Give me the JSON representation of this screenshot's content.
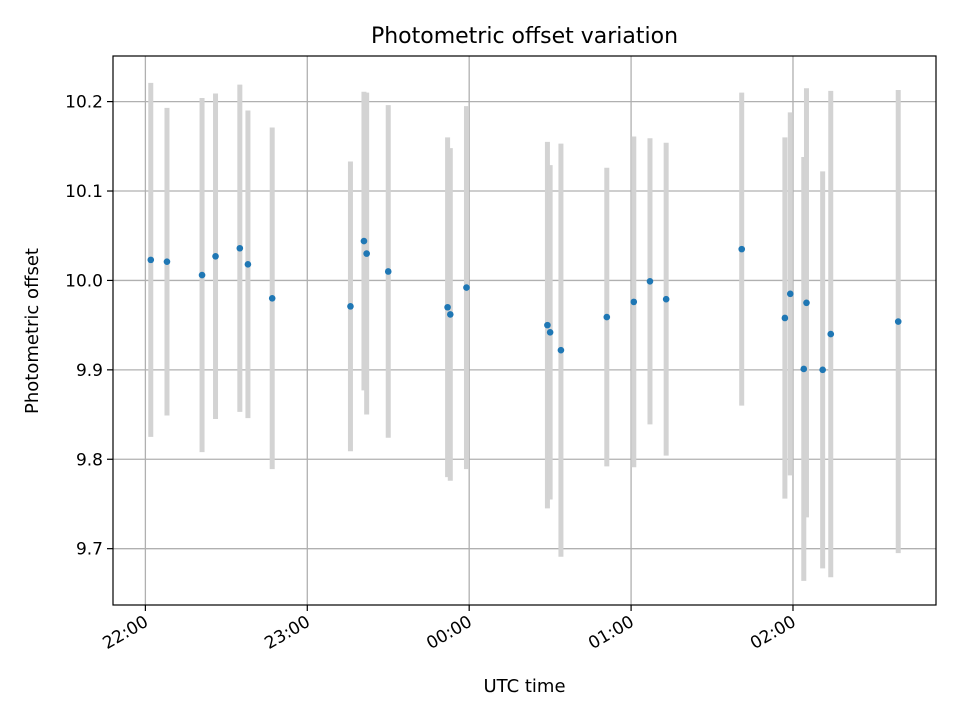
{
  "chart_data": {
    "type": "scatter",
    "title": "Photometric offset variation",
    "xlabel": "UTC time",
    "ylabel": "Photometric offset",
    "x_is_time": true,
    "xlim": [
      "21:48",
      "02:53"
    ],
    "ylim": [
      9.637,
      10.251
    ],
    "x_ticks": [
      "22:00",
      "23:00",
      "00:00",
      "01:00",
      "02:00"
    ],
    "y_ticks": [
      9.7,
      9.8,
      9.9,
      10.0,
      10.1,
      10.2
    ],
    "grid": true,
    "colors": {
      "marker": "#1f77b4",
      "errorbar": "#d3d3d3",
      "grid": "#b0b0b0"
    },
    "series": [
      {
        "points": [
          {
            "x": "22:02",
            "y": 10.023,
            "err": 0.198
          },
          {
            "x": "22:08",
            "y": 10.021,
            "err": 0.172
          },
          {
            "x": "22:21",
            "y": 10.006,
            "err": 0.198
          },
          {
            "x": "22:26",
            "y": 10.027,
            "err": 0.182
          },
          {
            "x": "22:35",
            "y": 10.036,
            "err": 0.183
          },
          {
            "x": "22:38",
            "y": 10.018,
            "err": 0.172
          },
          {
            "x": "22:47",
            "y": 9.98,
            "err": 0.191
          },
          {
            "x": "23:16",
            "y": 9.971,
            "err": 0.162
          },
          {
            "x": "23:21",
            "y": 10.044,
            "err": 0.167
          },
          {
            "x": "23:22",
            "y": 10.03,
            "err": 0.18
          },
          {
            "x": "23:30",
            "y": 10.01,
            "err": 0.186
          },
          {
            "x": "23:52",
            "y": 9.97,
            "err": 0.19
          },
          {
            "x": "23:53",
            "y": 9.962,
            "err": 0.186
          },
          {
            "x": "23:59",
            "y": 9.992,
            "err": 0.203
          },
          {
            "x": "00:29",
            "y": 9.95,
            "err": 0.205
          },
          {
            "x": "00:30",
            "y": 9.942,
            "err": 0.187
          },
          {
            "x": "00:34",
            "y": 9.922,
            "err": 0.231
          },
          {
            "x": "00:51",
            "y": 9.959,
            "err": 0.167
          },
          {
            "x": "01:01",
            "y": 9.976,
            "err": 0.185
          },
          {
            "x": "01:07",
            "y": 9.999,
            "err": 0.16
          },
          {
            "x": "01:13",
            "y": 9.979,
            "err": 0.175
          },
          {
            "x": "01:41",
            "y": 10.035,
            "err": 0.175
          },
          {
            "x": "01:57",
            "y": 9.958,
            "err": 0.202
          },
          {
            "x": "01:59",
            "y": 9.985,
            "err": 0.203
          },
          {
            "x": "02:04",
            "y": 9.901,
            "err": 0.237
          },
          {
            "x": "02:05",
            "y": 9.975,
            "err": 0.24
          },
          {
            "x": "02:11",
            "y": 9.9,
            "err": 0.222
          },
          {
            "x": "02:14",
            "y": 9.94,
            "err": 0.272
          },
          {
            "x": "02:39",
            "y": 9.954,
            "err": 0.259
          }
        ]
      }
    ]
  }
}
